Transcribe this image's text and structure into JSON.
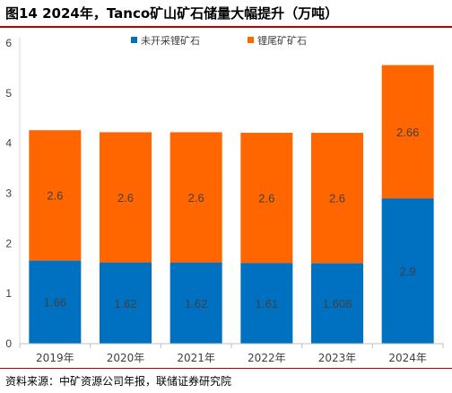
{
  "title": "图14 2024年，Tanco矿山矿石储量大幅提升（万吨）",
  "source": "资料来源：中矿资源公司年报，联储证券研究院",
  "chart_data": {
    "type": "bar",
    "stacked": true,
    "categories": [
      "2019年",
      "2020年",
      "2021年",
      "2022年",
      "2023年",
      "2024年"
    ],
    "series": [
      {
        "name": "未开采锂矿石",
        "color": "#0070c0",
        "values": [
          1.66,
          1.62,
          1.62,
          1.61,
          1.608,
          2.9
        ],
        "labels": [
          "1.66",
          "1.62",
          "1.62",
          "1.61",
          "1.608",
          "2.9"
        ]
      },
      {
        "name": "锂尾矿矿石",
        "color": "#ff6600",
        "values": [
          2.6,
          2.6,
          2.6,
          2.6,
          2.6,
          2.66
        ],
        "labels": [
          "2.6",
          "2.6",
          "2.6",
          "2.6",
          "2.6",
          "2.66"
        ]
      }
    ],
    "ylim": [
      0,
      6
    ],
    "yticks": [
      0,
      1,
      2,
      3,
      4,
      5,
      6
    ],
    "legend": "top-center",
    "grid": false
  }
}
